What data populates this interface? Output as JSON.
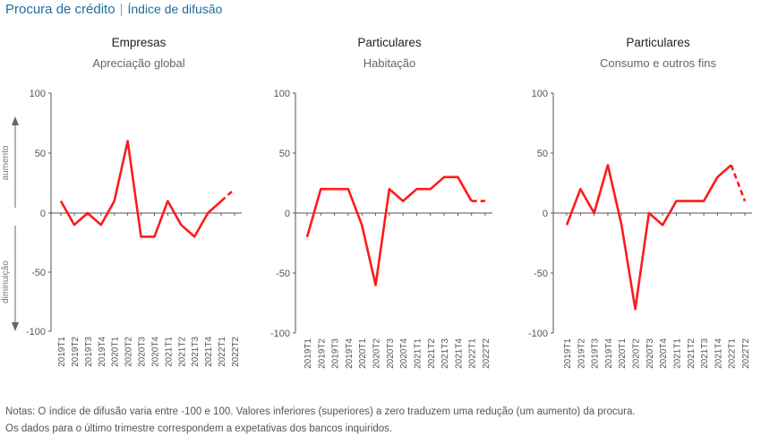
{
  "header": {
    "title": "Procura de crédito",
    "subtitle": "Índice de difusão"
  },
  "side_labels": {
    "up": "aumento",
    "down": "diminuição"
  },
  "colors": {
    "series": "#ff1a1a",
    "title": "#1f6e9c",
    "axis": "#555555",
    "text": "#333333"
  },
  "chart_data": [
    {
      "type": "line",
      "title": "Empresas",
      "subtitle": "Apreciação global",
      "categories": [
        "2019T1",
        "2019T2",
        "2019T3",
        "2019T4",
        "2020T1",
        "2020T2",
        "2020T3",
        "2020T4",
        "2021T1",
        "2021T2",
        "2021T3",
        "2021T4",
        "2022T1",
        "2022T2"
      ],
      "values": [
        10,
        -10,
        0,
        -10,
        10,
        60,
        -20,
        -20,
        10,
        -10,
        -20,
        0,
        10,
        20
      ],
      "dashed_last": true,
      "ylim": [
        -100,
        100
      ],
      "yticks": [
        100,
        50,
        0,
        -50,
        -100
      ]
    },
    {
      "type": "line",
      "title": "Particulares",
      "subtitle": "Habitação",
      "categories": [
        "2019T1",
        "2019T2",
        "2019T3",
        "2019T4",
        "2020T1",
        "2020T2",
        "2020T3",
        "2020T4",
        "2021T1",
        "2021T2",
        "2021T3",
        "2021T4",
        "2022T1",
        "2022T2"
      ],
      "values": [
        -20,
        20,
        20,
        20,
        -10,
        -60,
        20,
        10,
        20,
        20,
        30,
        30,
        10,
        10
      ],
      "dashed_last": true,
      "ylim": [
        -100,
        100
      ],
      "yticks": [
        100,
        50,
        0,
        -50,
        -100
      ]
    },
    {
      "type": "line",
      "title": "Particulares",
      "subtitle": "Consumo e outros fins",
      "categories": [
        "2019T1",
        "2019T2",
        "2019T3",
        "2019T4",
        "2020T1",
        "2020T2",
        "2020T3",
        "2020T4",
        "2021T1",
        "2021T2",
        "2021T3",
        "2021T4",
        "2022T1",
        "2022T2"
      ],
      "values": [
        -10,
        20,
        0,
        40,
        -10,
        -80,
        0,
        -10,
        10,
        10,
        10,
        30,
        40,
        10
      ],
      "dashed_last": true,
      "ylim": [
        -100,
        100
      ],
      "yticks": [
        100,
        50,
        0,
        -50,
        -100
      ]
    }
  ],
  "notes": [
    "Notas: O índice de difusão varia entre -100 e 100. Valores inferiores (superiores) a zero traduzem uma redução (um aumento) da procura.",
    "Os dados para o último trimestre correspondem a expetativas dos bancos inquiridos."
  ]
}
